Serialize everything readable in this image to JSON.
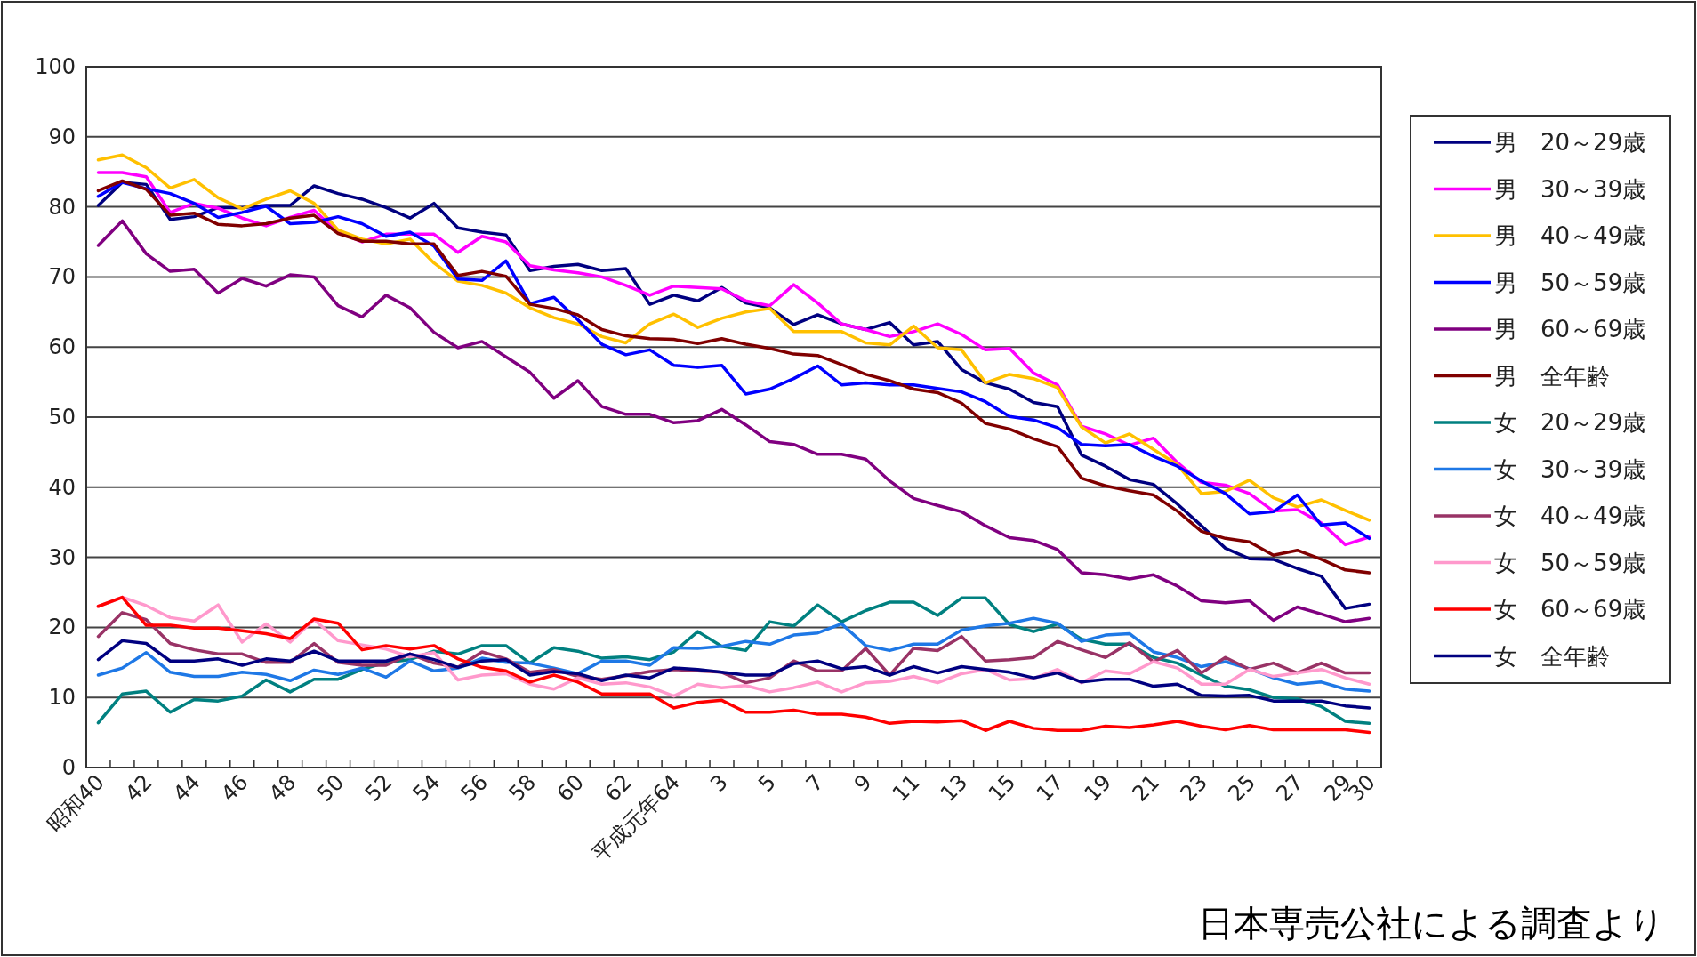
{
  "chart_data": {
    "type": "line",
    "ylim": [
      0,
      100
    ],
    "yticks": [
      0,
      10,
      20,
      30,
      40,
      50,
      60,
      70,
      80,
      90,
      100
    ],
    "grid": "y",
    "legend": "right",
    "categories": [
      "昭和40",
      null,
      "42",
      null,
      "44",
      null,
      "46",
      null,
      "48",
      null,
      "50",
      null,
      "52",
      null,
      "54",
      null,
      "56",
      null,
      "58",
      null,
      "60",
      null,
      "62",
      null,
      "平成元年64",
      null,
      "3",
      null,
      "5",
      null,
      "7",
      null,
      "9",
      null,
      "11",
      null,
      "13",
      null,
      "15",
      null,
      "17",
      null,
      "19",
      null,
      "21",
      null,
      "23",
      null,
      "25",
      null,
      "27",
      null,
      "29",
      "30"
    ],
    "annotations": [
      "日本専売公社による調査より"
    ],
    "series": [
      {
        "name": "男　20～29歳",
        "color": "#000080",
        "values": [
          80.2,
          83.5,
          83.2,
          78.2,
          78.6,
          79.9,
          79.9,
          80.2,
          80.2,
          83.0,
          81.9,
          81.1,
          79.9,
          78.4,
          80.5,
          77.0,
          76.4,
          76.0,
          70.9,
          71.5,
          71.8,
          70.9,
          71.2,
          66.1,
          67.4,
          66.6,
          68.5,
          66.3,
          65.6,
          63.2,
          64.6,
          63.3,
          62.5,
          63.5,
          60.3,
          60.8,
          56.8,
          54.9,
          54.0,
          52.1,
          51.5,
          44.6,
          43.0,
          41.1,
          40.4,
          37.6,
          34.5,
          31.3,
          29.8,
          29.7,
          28.4,
          27.3,
          22.7,
          23.3
        ]
      },
      {
        "name": "男　30～39歳",
        "color": "#ff00ff",
        "values": [
          84.9,
          84.9,
          84.3,
          79.2,
          80.5,
          79.8,
          78.4,
          77.3,
          78.5,
          79.5,
          76.4,
          75.0,
          76.1,
          76.1,
          76.1,
          73.5,
          75.8,
          75.0,
          71.6,
          71.0,
          70.6,
          70.0,
          68.8,
          67.4,
          68.7,
          68.5,
          68.3,
          66.6,
          65.9,
          68.9,
          66.3,
          63.3,
          62.5,
          61.5,
          62.2,
          63.3,
          61.8,
          59.6,
          59.8,
          56.3,
          54.6,
          48.7,
          47.6,
          46.0,
          47.0,
          43.5,
          40.7,
          40.3,
          39.1,
          36.6,
          36.8,
          34.9,
          31.8,
          32.9
        ]
      },
      {
        "name": "男　40～49歳",
        "color": "#ffc000",
        "values": [
          86.7,
          87.4,
          85.6,
          82.7,
          83.9,
          81.3,
          79.7,
          81.1,
          82.3,
          80.5,
          76.7,
          75.4,
          74.7,
          75.4,
          72.0,
          69.4,
          68.8,
          67.7,
          65.6,
          64.2,
          63.3,
          61.5,
          60.6,
          63.3,
          64.7,
          62.8,
          64.1,
          65.0,
          65.5,
          62.2,
          62.2,
          62.2,
          60.6,
          60.3,
          63.0,
          59.9,
          59.6,
          54.9,
          56.1,
          55.5,
          54.2,
          48.6,
          46.3,
          47.6,
          45.4,
          43.2,
          39.1,
          39.4,
          41.0,
          38.5,
          37.2,
          38.2,
          36.7,
          35.3
        ]
      },
      {
        "name": "男　50～59歳",
        "color": "#0000ff",
        "values": [
          81.5,
          83.5,
          82.6,
          81.9,
          80.5,
          78.5,
          79.2,
          80.1,
          77.6,
          77.8,
          78.6,
          77.6,
          75.8,
          76.4,
          74.4,
          69.7,
          69.5,
          72.3,
          66.2,
          67.1,
          63.9,
          60.4,
          58.9,
          59.6,
          57.4,
          57.1,
          57.4,
          53.3,
          54.0,
          55.5,
          57.3,
          54.6,
          54.9,
          54.6,
          54.6,
          54.1,
          53.6,
          52.2,
          50.1,
          49.6,
          48.5,
          46.1,
          45.9,
          46.1,
          44.4,
          43.0,
          40.9,
          39.1,
          36.2,
          36.5,
          38.9,
          34.6,
          34.9,
          32.7
        ]
      },
      {
        "name": "男　60～69歳",
        "color": "#800080",
        "values": [
          74.5,
          78.0,
          73.3,
          70.8,
          71.1,
          67.7,
          69.8,
          68.7,
          70.3,
          70.0,
          65.9,
          64.3,
          67.4,
          65.6,
          62.1,
          59.9,
          60.8,
          58.6,
          56.4,
          52.7,
          55.2,
          51.5,
          50.4,
          50.4,
          49.2,
          49.5,
          51.1,
          48.9,
          46.5,
          46.1,
          44.7,
          44.7,
          44.0,
          40.9,
          38.4,
          37.4,
          36.5,
          34.5,
          32.8,
          32.4,
          31.1,
          27.8,
          27.5,
          26.9,
          27.5,
          25.9,
          23.8,
          23.5,
          23.8,
          21.0,
          22.9,
          21.9,
          20.8,
          21.3
        ]
      },
      {
        "name": "男　全年齢",
        "color": "#800000",
        "values": [
          82.3,
          83.7,
          82.5,
          78.8,
          79.1,
          77.5,
          77.3,
          77.6,
          78.4,
          78.8,
          76.2,
          75.1,
          75.1,
          74.7,
          74.7,
          70.2,
          70.8,
          70.1,
          66.1,
          65.5,
          64.6,
          62.5,
          61.6,
          61.2,
          61.1,
          60.5,
          61.2,
          60.4,
          59.8,
          59.0,
          58.8,
          57.5,
          56.1,
          55.2,
          54.0,
          53.5,
          52.0,
          49.1,
          48.3,
          46.9,
          45.8,
          41.3,
          40.2,
          39.5,
          38.9,
          36.6,
          33.7,
          32.7,
          32.2,
          30.3,
          31.0,
          29.7,
          28.2,
          27.8
        ]
      },
      {
        "name": "女　20～29歳",
        "color": "#008080",
        "values": [
          6.4,
          10.5,
          10.9,
          7.9,
          9.7,
          9.5,
          10.2,
          12.5,
          10.8,
          12.6,
          12.6,
          14.0,
          15.0,
          15.4,
          16.6,
          16.2,
          17.4,
          17.4,
          14.9,
          17.1,
          16.6,
          15.6,
          15.8,
          15.4,
          16.5,
          19.4,
          17.3,
          16.7,
          20.8,
          20.2,
          23.2,
          20.8,
          22.4,
          23.6,
          23.6,
          21.7,
          24.2,
          24.2,
          20.4,
          19.4,
          20.5,
          18.3,
          17.6,
          17.6,
          15.7,
          14.9,
          13.2,
          11.6,
          11.1,
          10.0,
          9.8,
          8.7,
          6.6,
          6.3
        ]
      },
      {
        "name": "女　30～39歳",
        "color": "#1e78e6",
        "values": [
          13.2,
          14.2,
          16.4,
          13.6,
          13.0,
          13.0,
          13.6,
          13.3,
          12.4,
          13.9,
          13.3,
          14.2,
          12.9,
          15.2,
          13.8,
          14.2,
          15.6,
          15.0,
          14.9,
          14.2,
          13.4,
          15.2,
          15.2,
          14.6,
          17.1,
          17.0,
          17.3,
          18.0,
          17.6,
          18.9,
          19.2,
          20.5,
          17.4,
          16.7,
          17.6,
          17.6,
          19.6,
          20.2,
          20.6,
          21.3,
          20.6,
          18.0,
          18.9,
          19.1,
          16.5,
          15.7,
          14.4,
          15.1,
          14.1,
          12.8,
          11.9,
          12.2,
          11.2,
          10.9
        ]
      },
      {
        "name": "女　40～49歳",
        "color": "#993366",
        "values": [
          18.7,
          22.1,
          21.1,
          17.7,
          16.8,
          16.2,
          16.2,
          15.0,
          15.0,
          17.7,
          15.0,
          14.6,
          14.6,
          16.2,
          14.9,
          14.3,
          16.5,
          15.5,
          13.6,
          14.0,
          13.0,
          12.6,
          13.1,
          13.7,
          14.0,
          13.8,
          13.6,
          12.1,
          12.8,
          15.2,
          13.8,
          13.8,
          17.0,
          13.2,
          17.0,
          16.7,
          18.7,
          15.2,
          15.4,
          15.7,
          18.0,
          16.8,
          15.7,
          17.8,
          15.1,
          16.7,
          13.5,
          15.7,
          14.0,
          14.9,
          13.5,
          14.9,
          13.5,
          13.5
        ]
      },
      {
        "name": "女　50～59歳",
        "color": "#ff99cc",
        "values": [
          23.0,
          24.3,
          23.1,
          21.4,
          20.9,
          23.2,
          17.9,
          20.5,
          17.9,
          21.1,
          18.1,
          17.5,
          16.9,
          15.8,
          16.4,
          12.5,
          13.2,
          13.4,
          11.9,
          11.2,
          12.8,
          11.9,
          12.1,
          11.5,
          10.2,
          11.9,
          11.4,
          11.7,
          10.8,
          11.4,
          12.2,
          10.8,
          12.1,
          12.3,
          13.0,
          12.1,
          13.4,
          14.0,
          12.5,
          12.7,
          14.0,
          12.1,
          13.8,
          13.4,
          15.1,
          14.2,
          11.9,
          11.9,
          14.0,
          13.0,
          13.5,
          14.0,
          12.8,
          11.9
        ]
      },
      {
        "name": "女　60～69歳",
        "color": "#ff0000",
        "values": [
          23.0,
          24.3,
          20.3,
          20.3,
          19.9,
          19.9,
          19.5,
          19.1,
          18.4,
          21.2,
          20.6,
          16.8,
          17.4,
          16.9,
          17.4,
          15.5,
          14.3,
          13.8,
          12.2,
          13.2,
          12.2,
          10.5,
          10.5,
          10.5,
          8.5,
          9.3,
          9.6,
          7.9,
          7.9,
          8.2,
          7.6,
          7.6,
          7.2,
          6.3,
          6.6,
          6.5,
          6.7,
          5.3,
          6.6,
          5.6,
          5.3,
          5.3,
          5.9,
          5.7,
          6.1,
          6.6,
          5.9,
          5.4,
          6.0,
          5.4,
          5.4,
          5.4,
          5.4,
          5.0
        ]
      },
      {
        "name": "女　全年齢",
        "color": "#000080",
        "values": [
          15.4,
          18.1,
          17.7,
          15.2,
          15.2,
          15.5,
          14.6,
          15.5,
          15.2,
          16.6,
          15.2,
          15.2,
          15.2,
          16.2,
          15.4,
          14.3,
          15.2,
          15.4,
          13.2,
          13.7,
          13.4,
          12.4,
          13.2,
          12.8,
          14.2,
          14.0,
          13.6,
          13.2,
          13.2,
          14.8,
          15.2,
          14.1,
          14.4,
          13.2,
          14.4,
          13.5,
          14.4,
          14.0,
          13.6,
          12.8,
          13.5,
          12.2,
          12.6,
          12.6,
          11.6,
          11.9,
          10.3,
          10.2,
          10.3,
          9.5,
          9.5,
          9.5,
          8.8,
          8.5
        ]
      }
    ]
  }
}
